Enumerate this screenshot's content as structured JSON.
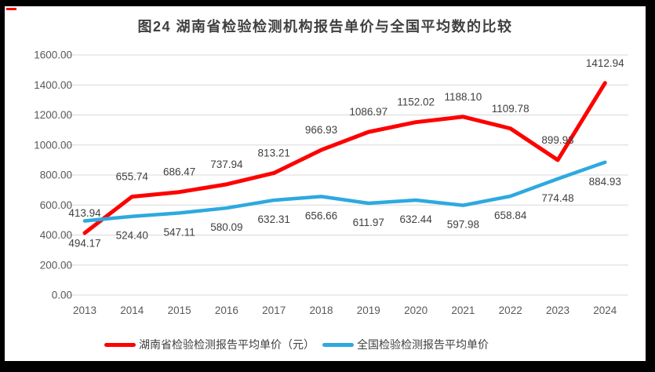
{
  "window": {
    "title": "图24 湖南省检验检测机构报告单价与全国平均数的比较"
  },
  "colors": {
    "hunan_red": "#FE0000",
    "national_blue": "#2DA9E0",
    "gridline": "#D9D9D9",
    "axis_text": "#595959",
    "data_label_text": "#404040",
    "title_text": "#404040",
    "frame": "#000000",
    "background": "#FFFFFF"
  },
  "chart_data": {
    "type": "line",
    "title": "图24 湖南省检验检测机构报告单价与全国平均数的比较",
    "categories": [
      "2013",
      "2014",
      "2015",
      "2016",
      "2017",
      "2018",
      "2019",
      "2020",
      "2021",
      "2022",
      "2023",
      "2024"
    ],
    "series": [
      {
        "name": "湖南省检验检测报告平均单价（元）",
        "color": "#FE0000",
        "label_position": "above",
        "values": [
          413.94,
          655.74,
          686.47,
          737.94,
          813.21,
          966.93,
          1086.97,
          1152.02,
          1188.1,
          1109.78,
          899.93,
          1412.94
        ]
      },
      {
        "name": "全国检验检测报告平均单价",
        "color": "#2DA9E0",
        "label_position": "below",
        "values": [
          494.17,
          524.4,
          547.11,
          580.09,
          632.31,
          656.66,
          611.97,
          632.44,
          597.98,
          658.84,
          774.48,
          884.93
        ]
      }
    ],
    "ylim": [
      0,
      1600
    ],
    "ytick_step": 200,
    "value_format": "0.00",
    "grid": "horizontal",
    "legend_position": "bottom"
  }
}
